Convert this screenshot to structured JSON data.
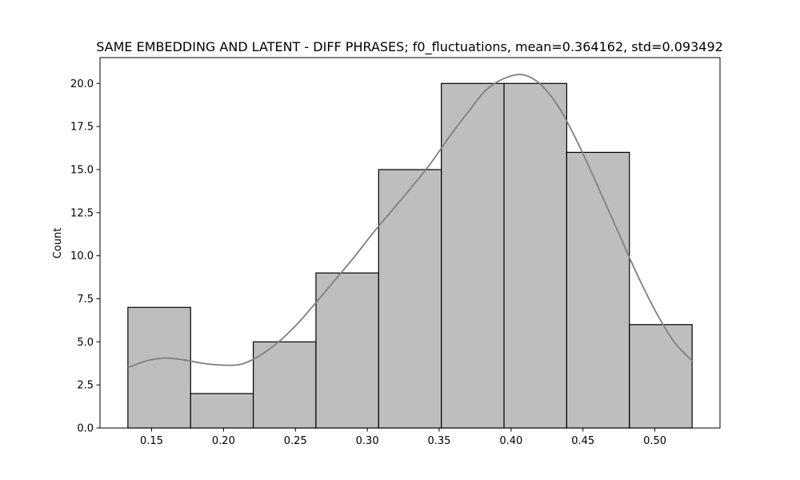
{
  "chart_data": {
    "type": "bar",
    "title": "SAME EMBEDDING AND LATENT - DIFF PHRASES; f0_fluctuations, mean=0.364162, std=0.093492",
    "xlabel": "",
    "ylabel": "Count",
    "bin_edges": [
      0.1335,
      0.1771,
      0.2207,
      0.2643,
      0.3079,
      0.3515,
      0.3951,
      0.4387,
      0.4823,
      0.5259
    ],
    "values": [
      7,
      2,
      5,
      9,
      15,
      20,
      20,
      16,
      6
    ],
    "kde": {
      "x": [
        0.1335,
        0.1466,
        0.1597,
        0.1728,
        0.1859,
        0.199,
        0.2121,
        0.2252,
        0.2383,
        0.2514,
        0.2645,
        0.2776,
        0.2907,
        0.3038,
        0.3169,
        0.33,
        0.3431,
        0.3562,
        0.3693,
        0.3824,
        0.3955,
        0.4086,
        0.4217,
        0.4348,
        0.4479,
        0.461,
        0.4741,
        0.4872,
        0.5003,
        0.5134,
        0.5265
      ],
      "y": [
        3.5,
        3.9,
        4.06,
        3.95,
        3.75,
        3.65,
        3.7,
        4.2,
        5.0,
        6.05,
        7.3,
        8.6,
        9.9,
        11.3,
        12.6,
        13.9,
        15.25,
        16.8,
        18.25,
        19.6,
        20.3,
        20.5,
        19.85,
        18.4,
        16.3,
        13.9,
        11.45,
        9.0,
        6.8,
        5.0,
        3.85
      ]
    },
    "xlim": [
      0.1141,
      0.5453
    ],
    "ylim": [
      0,
      21.5
    ],
    "xticks": [
      0.15,
      0.2,
      0.25,
      0.3,
      0.35,
      0.4,
      0.45,
      0.5
    ],
    "xtick_labels": [
      "0.15",
      "0.20",
      "0.25",
      "0.30",
      "0.35",
      "0.40",
      "0.45",
      "0.50"
    ],
    "yticks": [
      0,
      2.5,
      5,
      7.5,
      10,
      12.5,
      15,
      17.5,
      20
    ],
    "ytick_labels": [
      "0.0",
      "2.5",
      "5.0",
      "7.5",
      "10.0",
      "12.5",
      "15.0",
      "17.5",
      "20.0"
    ],
    "grid": false,
    "colors": {
      "bar_fill": "#bebebe",
      "bar_edge": "#000000",
      "kde_line": "#808080"
    }
  }
}
